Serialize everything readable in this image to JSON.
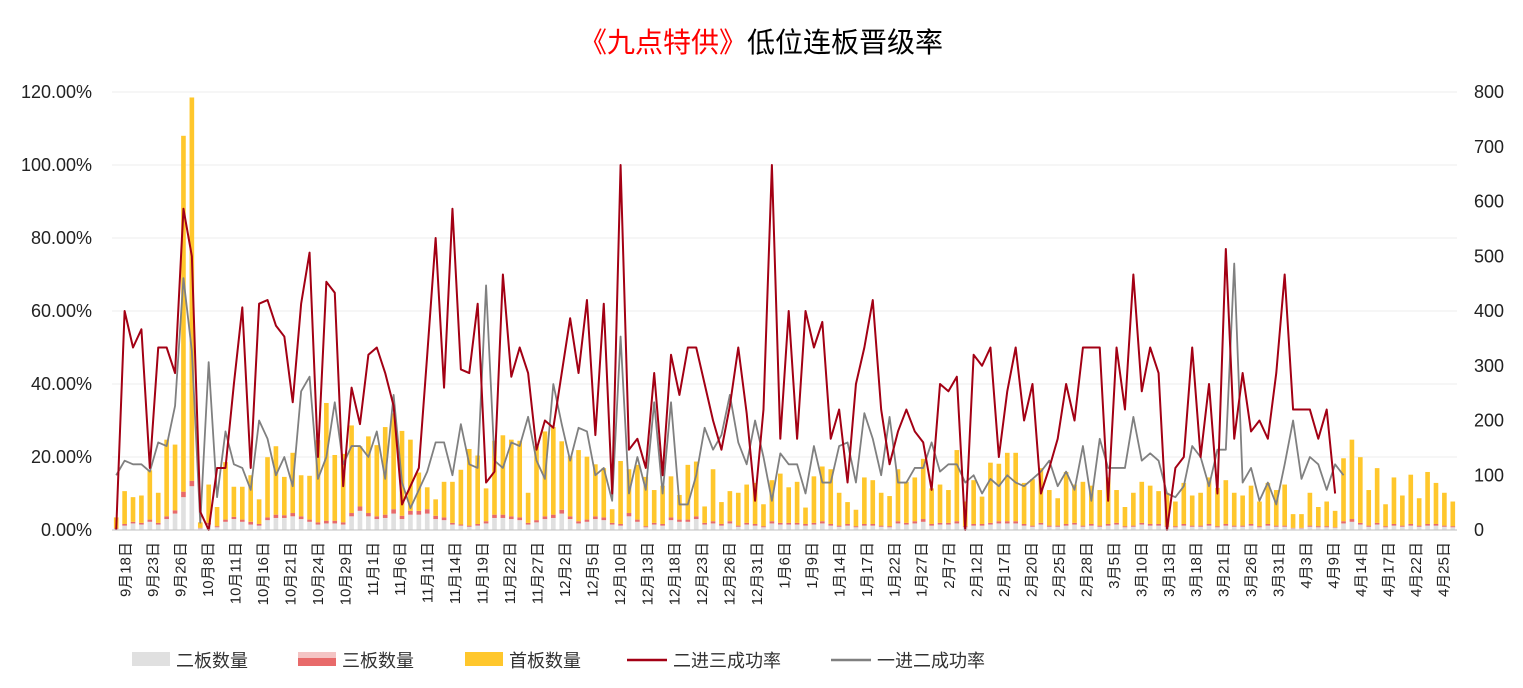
{
  "chart_data": {
    "type": "bar+line",
    "title_part1": "《九点特供》",
    "title_part2": "低位连板晋级率",
    "title_colors": {
      "part1": "#ff0000",
      "part2": "#000000"
    },
    "y_left": {
      "min": 0,
      "max": 1.2,
      "ticks": [
        "0.00%",
        "20.00%",
        "40.00%",
        "60.00%",
        "80.00%",
        "100.00%",
        "120.00%"
      ]
    },
    "y_right": {
      "min": 0,
      "max": 800,
      "ticks": [
        "0",
        "100",
        "200",
        "300",
        "400",
        "500",
        "600",
        "700",
        "800"
      ]
    },
    "x_tick_labels": [
      "9月18日",
      "9月23日",
      "9月26日",
      "10月8日",
      "10月11日",
      "10月16日",
      "10月21日",
      "10月24日",
      "10月29日",
      "11月1日",
      "11月6日",
      "11月11日",
      "11月14日",
      "11月19日",
      "11月22日",
      "11月27日",
      "12月2日",
      "12月5日",
      "12月10日",
      "12月13日",
      "12月18日",
      "12月23日",
      "12月26日",
      "12月31日",
      "1月6日",
      "1月9日",
      "1月14日",
      "1月17日",
      "1月22日",
      "1月27日",
      "2月7日",
      "2月12日",
      "2月17日",
      "2月20日",
      "2月25日",
      "2月28日",
      "3月5日",
      "3月10日",
      "3月13日",
      "3月18日",
      "3月21日",
      "3月26日",
      "3月31日",
      "4月3日",
      "4月9日",
      "4月14日",
      "4月17日",
      "4月22日",
      "4月25日"
    ],
    "legend": [
      {
        "name": "二板数量",
        "color": "#e0e0e0",
        "kind": "bar"
      },
      {
        "name": "三板数量",
        "color": "#e86a6a",
        "kind": "bar"
      },
      {
        "name": "首板数量",
        "color": "#ffc72c",
        "kind": "bar"
      },
      {
        "name": "二进三成功率",
        "color": "#a30014",
        "kind": "line"
      },
      {
        "name": "一进二成功率",
        "color": "#808080",
        "kind": "line"
      }
    ],
    "series": {
      "首板数量": [
        20,
        60,
        45,
        50,
        90,
        55,
        140,
        120,
        650,
        700,
        10,
        70,
        35,
        105,
        55,
        60,
        85,
        45,
        110,
        125,
        70,
        110,
        75,
        80,
        150,
        215,
        120,
        125,
        160,
        110,
        140,
        130,
        160,
        175,
        155,
        130,
        70,
        40,
        30,
        65,
        75,
        100,
        140,
        125,
        60,
        135,
        145,
        140,
        140,
        55,
        135,
        155,
        160,
        125,
        110,
        130,
        115,
        95,
        90,
        25,
        115,
        80,
        100,
        90,
        60,
        70,
        75,
        45,
        100,
        100,
        30,
        95,
        40,
        55,
        60,
        70,
        75,
        40,
        75,
        90,
        65,
        75,
        30,
        85,
        100,
        100,
        60,
        40,
        30,
        85,
        80,
        60,
        55,
        95,
        75,
        80,
        110,
        65,
        70,
        60,
        130,
        45,
        80,
        50,
        110,
        105,
        125,
        125,
        75,
        85,
        100,
        65,
        50,
        95,
        70,
        80,
        70,
        65,
        85,
        60,
        35,
        60,
        75,
        70,
        60,
        60,
        45,
        75,
        55,
        60,
        85,
        70,
        80,
        60,
        55,
        70,
        45,
        75,
        65,
        75,
        25,
        25,
        60,
        35,
        45,
        30,
        115,
        145,
        120,
        65,
        100,
        40,
        85,
        55,
        90,
        50,
        95,
        75,
        60,
        45
      ],
      "二板数量": [
        2,
        8,
        12,
        10,
        15,
        10,
        20,
        30,
        60,
        80,
        3,
        10,
        5,
        15,
        20,
        15,
        10,
        8,
        18,
        22,
        22,
        25,
        20,
        15,
        10,
        12,
        12,
        10,
        25,
        35,
        25,
        20,
        22,
        30,
        20,
        28,
        28,
        30,
        20,
        18,
        10,
        8,
        6,
        8,
        12,
        22,
        22,
        20,
        18,
        10,
        14,
        20,
        22,
        30,
        20,
        12,
        15,
        20,
        18,
        10,
        8,
        25,
        15,
        5,
        10,
        8,
        18,
        15,
        15,
        20,
        10,
        12,
        8,
        12,
        6,
        10,
        8,
        5,
        12,
        10,
        10,
        10,
        8,
        10,
        12,
        8,
        6,
        8,
        5,
        8,
        8,
        6,
        5,
        12,
        10,
        12,
        15,
        8,
        10,
        10,
        12,
        5,
        8,
        8,
        10,
        12,
        12,
        12,
        8,
        6,
        10,
        6,
        6,
        8,
        10,
        6,
        8,
        6,
        8,
        10,
        5,
        6,
        10,
        8,
        8,
        6,
        5,
        8,
        6,
        6,
        8,
        5,
        8,
        6,
        6,
        8,
        5,
        8,
        6,
        6,
        3,
        3,
        6,
        5,
        5,
        4,
        12,
        15,
        10,
        6,
        10,
        5,
        8,
        6,
        8,
        6,
        8,
        8,
        6,
        5
      ],
      "三板数量": [
        1,
        3,
        3,
        3,
        4,
        3,
        5,
        6,
        10,
        10,
        1,
        3,
        2,
        4,
        4,
        4,
        5,
        3,
        5,
        6,
        5,
        6,
        5,
        4,
        4,
        5,
        5,
        4,
        6,
        8,
        6,
        5,
        6,
        8,
        6,
        7,
        7,
        8,
        6,
        5,
        3,
        2,
        2,
        3,
        4,
        6,
        6,
        5,
        5,
        3,
        4,
        5,
        6,
        7,
        5,
        4,
        4,
        5,
        5,
        3,
        3,
        6,
        4,
        2,
        3,
        3,
        5,
        4,
        4,
        5,
        3,
        4,
        3,
        4,
        2,
        3,
        3,
        2,
        4,
        3,
        3,
        3,
        3,
        3,
        4,
        3,
        2,
        3,
        2,
        3,
        3,
        2,
        2,
        4,
        3,
        4,
        5,
        3,
        3,
        3,
        4,
        2,
        3,
        3,
        3,
        4,
        4,
        4,
        3,
        2,
        3,
        2,
        2,
        3,
        3,
        2,
        3,
        2,
        3,
        3,
        2,
        2,
        3,
        3,
        3,
        2,
        2,
        3,
        2,
        2,
        3,
        2,
        3,
        2,
        2,
        3,
        2,
        3,
        2,
        2,
        1,
        1,
        2,
        2,
        2,
        1,
        4,
        5,
        3,
        2,
        3,
        2,
        3,
        2,
        3,
        2,
        3,
        3,
        2,
        2
      ],
      "二进三成功率": [
        0.0,
        0.6,
        0.5,
        0.55,
        0.17,
        0.5,
        0.5,
        0.43,
        0.88,
        0.75,
        0.05,
        0.0,
        0.17,
        0.17,
        0.4,
        0.61,
        0.17,
        0.62,
        0.63,
        0.56,
        0.53,
        0.35,
        0.62,
        0.76,
        0.2,
        0.68,
        0.65,
        0.12,
        0.39,
        0.29,
        0.48,
        0.5,
        0.43,
        0.34,
        0.07,
        0.12,
        0.17,
        0.48,
        0.8,
        0.39,
        0.88,
        0.44,
        0.43,
        0.62,
        0.13,
        0.16,
        0.7,
        0.42,
        0.5,
        0.43,
        0.22,
        0.3,
        0.28,
        0.43,
        0.58,
        0.43,
        0.63,
        0.26,
        0.62,
        0.1,
        1.0,
        0.22,
        0.25,
        0.17,
        0.43,
        0.15,
        0.48,
        0.37,
        0.5,
        0.5,
        0.4,
        0.3,
        0.22,
        0.34,
        0.5,
        0.32,
        0.08,
        0.33,
        1.0,
        0.25,
        0.6,
        0.25,
        0.6,
        0.5,
        0.57,
        0.25,
        0.33,
        0.13,
        0.4,
        0.5,
        0.63,
        0.33,
        0.18,
        0.27,
        0.33,
        0.27,
        0.24,
        0.11,
        0.4,
        0.38,
        0.42,
        0.0,
        0.48,
        0.45,
        0.5,
        0.2,
        0.38,
        0.5,
        0.3,
        0.4,
        0.1,
        0.17,
        0.25,
        0.4,
        0.3,
        0.5,
        0.5,
        0.5,
        0.08,
        0.5,
        0.33,
        0.7,
        0.38,
        0.5,
        0.43,
        0.0,
        0.17,
        0.2,
        0.5,
        0.2,
        0.4,
        0.1,
        0.77,
        0.25,
        0.43,
        0.27,
        0.3,
        0.25,
        0.43,
        0.7,
        0.33,
        0.33,
        0.33,
        0.25,
        0.33,
        0.1
      ],
      "一进二成功率": [
        0.15,
        0.19,
        0.18,
        0.18,
        0.16,
        0.24,
        0.23,
        0.34,
        0.69,
        0.49,
        0.02,
        0.46,
        0.09,
        0.27,
        0.18,
        0.17,
        0.11,
        0.3,
        0.25,
        0.15,
        0.2,
        0.12,
        0.38,
        0.42,
        0.14,
        0.2,
        0.35,
        0.18,
        0.23,
        0.23,
        0.2,
        0.27,
        0.14,
        0.37,
        0.13,
        0.06,
        0.11,
        0.16,
        0.24,
        0.24,
        0.15,
        0.29,
        0.18,
        0.17,
        0.67,
        0.19,
        0.17,
        0.24,
        0.23,
        0.31,
        0.19,
        0.14,
        0.4,
        0.29,
        0.19,
        0.28,
        0.27,
        0.15,
        0.17,
        0.08,
        0.53,
        0.1,
        0.2,
        0.11,
        0.35,
        0.1,
        0.35,
        0.07,
        0.07,
        0.15,
        0.28,
        0.22,
        0.26,
        0.37,
        0.24,
        0.18,
        0.3,
        0.2,
        0.08,
        0.21,
        0.18,
        0.18,
        0.1,
        0.23,
        0.13,
        0.13,
        0.23,
        0.24,
        0.13,
        0.32,
        0.25,
        0.15,
        0.31,
        0.13,
        0.13,
        0.17,
        0.17,
        0.24,
        0.16,
        0.18,
        0.18,
        0.13,
        0.15,
        0.1,
        0.14,
        0.12,
        0.15,
        0.13,
        0.12,
        0.14,
        0.16,
        0.19,
        0.12,
        0.16,
        0.11,
        0.23,
        0.08,
        0.25,
        0.17,
        0.17,
        0.17,
        0.31,
        0.19,
        0.21,
        0.19,
        0.1,
        0.09,
        0.12,
        0.23,
        0.2,
        0.12,
        0.22,
        0.22,
        0.73,
        0.13,
        0.17,
        0.08,
        0.13,
        0.07,
        0.18,
        0.3,
        0.14,
        0.2,
        0.18,
        0.11,
        0.18,
        0.15
      ]
    }
  }
}
